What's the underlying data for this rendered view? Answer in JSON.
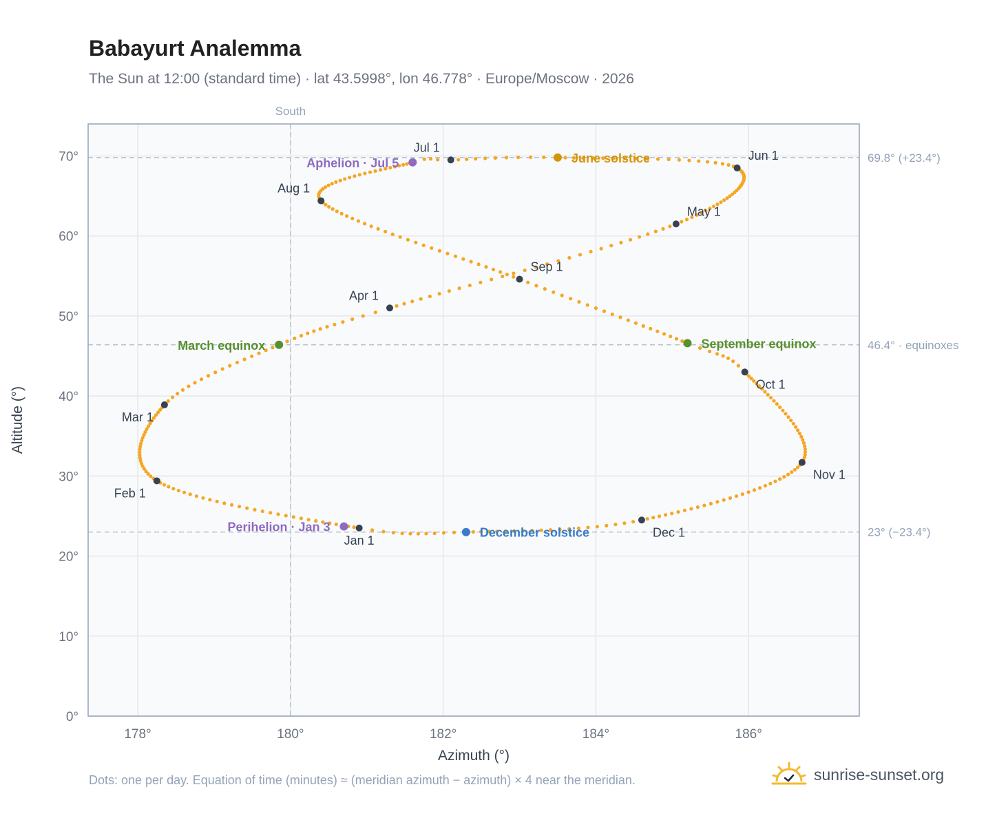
{
  "header": {
    "title": "Babayurt Analemma",
    "subtitle": "The Sun at 12:00 (standard time) · lat 43.5998°, lon 46.778° · Europe/Moscow · 2026"
  },
  "footer": {
    "note": "Dots: one per day. Equation of time (minutes) ≈ (meridian azimuth − azimuth) × 4 near the meridian.",
    "brand": "sunrise-sunset.org"
  },
  "colors": {
    "curve": "#f5a623",
    "month_marker": "#374151",
    "equinox": "#5a8f2e",
    "june_solstice": "#d4940a",
    "december_solstice": "#3a7bc8",
    "apsis": "#8e6bbf",
    "grid": "#e5e7eb",
    "reference_line": "#b8c4cc",
    "plot_background": "#f8fafc",
    "frame": "#94a3b8"
  },
  "chart_data": {
    "type": "scatter",
    "xlabel": "Azimuth (°)",
    "ylabel": "Altitude (°)",
    "xlim": [
      177.35,
      187.45
    ],
    "ylim": [
      0,
      74
    ],
    "xticks": [
      178,
      180,
      182,
      184,
      186
    ],
    "xtick_labels": [
      "178°",
      "180°",
      "182°",
      "184°",
      "186°"
    ],
    "yticks": [
      0,
      10,
      20,
      30,
      40,
      50,
      60,
      70
    ],
    "ytick_labels": [
      "0°",
      "10°",
      "20°",
      "30°",
      "40°",
      "50°",
      "60°",
      "70°"
    ],
    "grid": true,
    "meridian": {
      "x": 180,
      "label": "South"
    },
    "reference_lines": [
      {
        "y": 69.8,
        "label": "69.8° (+23.4°)"
      },
      {
        "y": 46.4,
        "label": "46.4° · equinoxes"
      },
      {
        "y": 23.0,
        "label": "23° (−23.4°)"
      }
    ],
    "curve_anchors": [
      {
        "day": 1,
        "az": 180.9,
        "alt": 23.5
      },
      {
        "day": 32,
        "az": 178.25,
        "alt": 29.4
      },
      {
        "day": 60,
        "az": 178.35,
        "alt": 38.9
      },
      {
        "day": 78,
        "az": 179.85,
        "alt": 46.4
      },
      {
        "day": 91,
        "az": 181.3,
        "alt": 51.0
      },
      {
        "day": 121,
        "az": 185.05,
        "alt": 61.5
      },
      {
        "day": 152,
        "az": 185.85,
        "alt": 68.5
      },
      {
        "day": 172,
        "az": 183.5,
        "alt": 69.8
      },
      {
        "day": 182,
        "az": 182.1,
        "alt": 69.5
      },
      {
        "day": 186,
        "az": 181.6,
        "alt": 69.2
      },
      {
        "day": 213,
        "az": 180.4,
        "alt": 64.4
      },
      {
        "day": 244,
        "az": 183.0,
        "alt": 54.6
      },
      {
        "day": 266,
        "az": 185.2,
        "alt": 46.6
      },
      {
        "day": 274,
        "az": 185.95,
        "alt": 43.0
      },
      {
        "day": 305,
        "az": 186.7,
        "alt": 31.7
      },
      {
        "day": 335,
        "az": 184.6,
        "alt": 24.5
      },
      {
        "day": 355,
        "az": 182.3,
        "alt": 23.0
      },
      {
        "day": 366,
        "az": 180.9,
        "alt": 23.5
      }
    ],
    "month_markers": [
      {
        "label": "Jan 1",
        "az": 180.9,
        "alt": 23.5,
        "pos": "below"
      },
      {
        "label": "Feb 1",
        "az": 178.25,
        "alt": 29.4,
        "pos": "below-left"
      },
      {
        "label": "Mar 1",
        "az": 178.35,
        "alt": 38.9,
        "pos": "below-left"
      },
      {
        "label": "Apr 1",
        "az": 181.3,
        "alt": 51.0,
        "pos": "above-left"
      },
      {
        "label": "May 1",
        "az": 185.05,
        "alt": 61.5,
        "pos": "above-right"
      },
      {
        "label": "Jun 1",
        "az": 185.85,
        "alt": 68.5,
        "pos": "above-right"
      },
      {
        "label": "Jul 1",
        "az": 182.1,
        "alt": 69.5,
        "pos": "above-left"
      },
      {
        "label": "Aug 1",
        "az": 180.4,
        "alt": 64.4,
        "pos": "above-left"
      },
      {
        "label": "Sep 1",
        "az": 183.0,
        "alt": 54.6,
        "pos": "above-right"
      },
      {
        "label": "Oct 1",
        "az": 185.95,
        "alt": 43.0,
        "pos": "below-right"
      },
      {
        "label": "Nov 1",
        "az": 186.7,
        "alt": 31.7,
        "pos": "below-right"
      },
      {
        "label": "Dec 1",
        "az": 184.6,
        "alt": 24.5,
        "pos": "below-right"
      }
    ],
    "events": [
      {
        "label": "March equinox",
        "az": 179.85,
        "alt": 46.4,
        "color_key": "equinox",
        "pos": "left"
      },
      {
        "label": "September equinox",
        "az": 185.2,
        "alt": 46.6,
        "color_key": "equinox",
        "pos": "right"
      },
      {
        "label": "June solstice",
        "az": 183.5,
        "alt": 69.8,
        "color_key": "june_solstice",
        "pos": "right"
      },
      {
        "label": "December solstice",
        "az": 182.3,
        "alt": 23.0,
        "color_key": "december_solstice",
        "pos": "right"
      },
      {
        "label": "Aphelion · Jul 5",
        "az": 181.6,
        "alt": 69.2,
        "color_key": "apsis",
        "pos": "left"
      },
      {
        "label": "Perihelion · Jan 3",
        "az": 180.7,
        "alt": 23.7,
        "color_key": "apsis",
        "pos": "left"
      }
    ]
  }
}
